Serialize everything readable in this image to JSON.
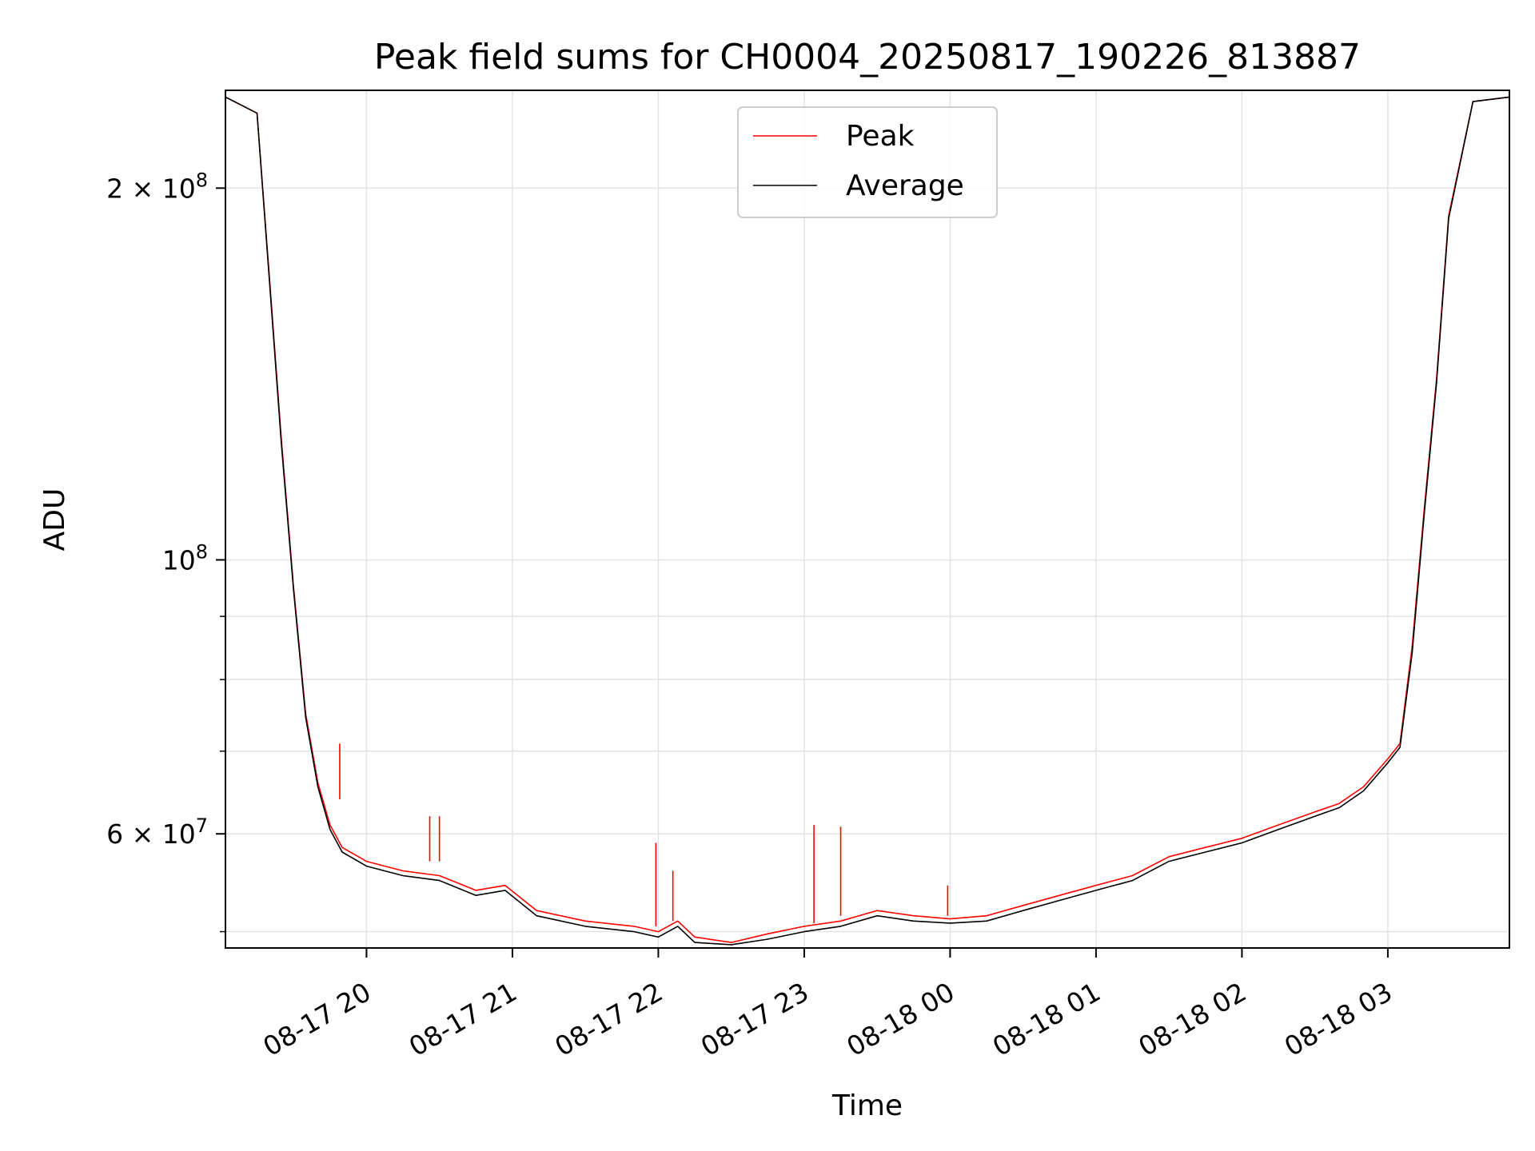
{
  "chart_data": {
    "type": "line",
    "title": "Peak field sums for CH0004_20250817_190226_813887",
    "xlabel": "Time",
    "ylabel": "ADU",
    "yscale": "log",
    "xlim": [
      "2025-08-17 19:02",
      "2025-08-18 03:50"
    ],
    "ylim": [
      48500000,
      240000000
    ],
    "grid": true,
    "legend_position": "top-center",
    "x_ticks": [
      {
        "value": "2025-08-17 20:00",
        "label": "08-17 20"
      },
      {
        "value": "2025-08-17 21:00",
        "label": "08-17 21"
      },
      {
        "value": "2025-08-17 22:00",
        "label": "08-17 22"
      },
      {
        "value": "2025-08-17 23:00",
        "label": "08-17 23"
      },
      {
        "value": "2025-08-18 00:00",
        "label": "08-18 00"
      },
      {
        "value": "2025-08-18 01:00",
        "label": "08-18 01"
      },
      {
        "value": "2025-08-18 02:00",
        "label": "08-18 02"
      },
      {
        "value": "2025-08-18 03:00",
        "label": "08-18 03"
      }
    ],
    "y_ticks_major": [
      {
        "value": 200000000,
        "label_base": "2 × 10",
        "label_exp": "8"
      },
      {
        "value": 100000000,
        "label_base": "10",
        "label_exp": "8"
      },
      {
        "value": 60000000,
        "label_base": "6 × 10",
        "label_exp": "7"
      }
    ],
    "y_ticks_minor": [
      50000000,
      70000000,
      80000000,
      90000000
    ],
    "series": [
      {
        "name": "Peak",
        "color": "#ff0000",
        "x": [
          "2025-08-17 19:02",
          "2025-08-17 19:15",
          "2025-08-17 19:20",
          "2025-08-17 19:25",
          "2025-08-17 19:30",
          "2025-08-17 19:35",
          "2025-08-17 19:40",
          "2025-08-17 19:45",
          "2025-08-17 19:50",
          "2025-08-17 20:00",
          "2025-08-17 20:15",
          "2025-08-17 20:30",
          "2025-08-17 20:45",
          "2025-08-17 20:57",
          "2025-08-17 21:10",
          "2025-08-17 21:30",
          "2025-08-17 21:50",
          "2025-08-17 22:00",
          "2025-08-17 22:08",
          "2025-08-17 22:15",
          "2025-08-17 22:30",
          "2025-08-17 22:45",
          "2025-08-17 23:00",
          "2025-08-17 23:15",
          "2025-08-17 23:30",
          "2025-08-17 23:45",
          "2025-08-18 00:00",
          "2025-08-18 00:15",
          "2025-08-18 00:30",
          "2025-08-18 00:45",
          "2025-08-18 01:00",
          "2025-08-18 01:15",
          "2025-08-18 01:30",
          "2025-08-18 01:45",
          "2025-08-18 02:00",
          "2025-08-18 02:15",
          "2025-08-18 02:30",
          "2025-08-18 02:40",
          "2025-08-18 02:50",
          "2025-08-18 03:00",
          "2025-08-18 03:05",
          "2025-08-18 03:10",
          "2025-08-18 03:15",
          "2025-08-18 03:20",
          "2025-08-18 03:25",
          "2025-08-18 03:35",
          "2025-08-18 03:50"
        ],
        "y": [
          237000000,
          230000000,
          170000000,
          125000000,
          95000000,
          75000000,
          66000000,
          61000000,
          58500000,
          57000000,
          56000000,
          55500000,
          54000000,
          54500000,
          52000000,
          51000000,
          50500000,
          50000000,
          51000000,
          49500000,
          49000000,
          49800000,
          50500000,
          51000000,
          52000000,
          51500000,
          51200000,
          51500000,
          52500000,
          53500000,
          54500000,
          55500000,
          57500000,
          58500000,
          59500000,
          61000000,
          62500000,
          63500000,
          65500000,
          69000000,
          71000000,
          85000000,
          110000000,
          140000000,
          190000000,
          235000000,
          237000000
        ]
      },
      {
        "name": "Average",
        "color": "#000000",
        "x": [
          "2025-08-17 19:02",
          "2025-08-17 19:15",
          "2025-08-17 19:20",
          "2025-08-17 19:25",
          "2025-08-17 19:30",
          "2025-08-17 19:35",
          "2025-08-17 19:40",
          "2025-08-17 19:45",
          "2025-08-17 19:50",
          "2025-08-17 20:00",
          "2025-08-17 20:15",
          "2025-08-17 20:30",
          "2025-08-17 20:45",
          "2025-08-17 20:57",
          "2025-08-17 21:10",
          "2025-08-17 21:30",
          "2025-08-17 21:50",
          "2025-08-17 22:00",
          "2025-08-17 22:08",
          "2025-08-17 22:15",
          "2025-08-17 22:30",
          "2025-08-17 22:45",
          "2025-08-17 23:00",
          "2025-08-17 23:15",
          "2025-08-17 23:30",
          "2025-08-17 23:45",
          "2025-08-18 00:00",
          "2025-08-18 00:15",
          "2025-08-18 00:30",
          "2025-08-18 00:45",
          "2025-08-18 01:00",
          "2025-08-18 01:15",
          "2025-08-18 01:30",
          "2025-08-18 01:45",
          "2025-08-18 02:00",
          "2025-08-18 02:15",
          "2025-08-18 02:30",
          "2025-08-18 02:40",
          "2025-08-18 02:50",
          "2025-08-18 03:00",
          "2025-08-18 03:05",
          "2025-08-18 03:10",
          "2025-08-18 03:15",
          "2025-08-18 03:20",
          "2025-08-18 03:25",
          "2025-08-18 03:35",
          "2025-08-18 03:50"
        ],
        "y": [
          237000000,
          230000000,
          169000000,
          124000000,
          94500000,
          74500000,
          65500000,
          60500000,
          58000000,
          56500000,
          55500000,
          55000000,
          53500000,
          54000000,
          51500000,
          50500000,
          50000000,
          49500000,
          50500000,
          49000000,
          48800000,
          49300000,
          50000000,
          50500000,
          51500000,
          51000000,
          50800000,
          51000000,
          52000000,
          53000000,
          54000000,
          55000000,
          57000000,
          58000000,
          59000000,
          60500000,
          62000000,
          63000000,
          65000000,
          68500000,
          70500000,
          84000000,
          109000000,
          139000000,
          189000000,
          235000000,
          237000000
        ]
      }
    ],
    "spikes": [
      {
        "series": "Peak",
        "x": "2025-08-17 19:49",
        "base": 64000000,
        "top": 71000000
      },
      {
        "series": "Peak",
        "x": "2025-08-17 20:26",
        "base": 57000000,
        "top": 62000000
      },
      {
        "series": "Peak",
        "x": "2025-08-17 20:30",
        "base": 57000000,
        "top": 62000000
      },
      {
        "series": "Peak",
        "x": "2025-08-17 21:59",
        "base": 50500000,
        "top": 59000000
      },
      {
        "series": "Peak",
        "x": "2025-08-17 22:06",
        "base": 51000000,
        "top": 56000000
      },
      {
        "series": "Peak",
        "x": "2025-08-17 23:04",
        "base": 50800000,
        "top": 61000000
      },
      {
        "series": "Peak",
        "x": "2025-08-17 23:15",
        "base": 51500000,
        "top": 60800000
      },
      {
        "series": "Peak",
        "x": "2025-08-17 23:59",
        "base": 51500000,
        "top": 54500000
      }
    ]
  }
}
